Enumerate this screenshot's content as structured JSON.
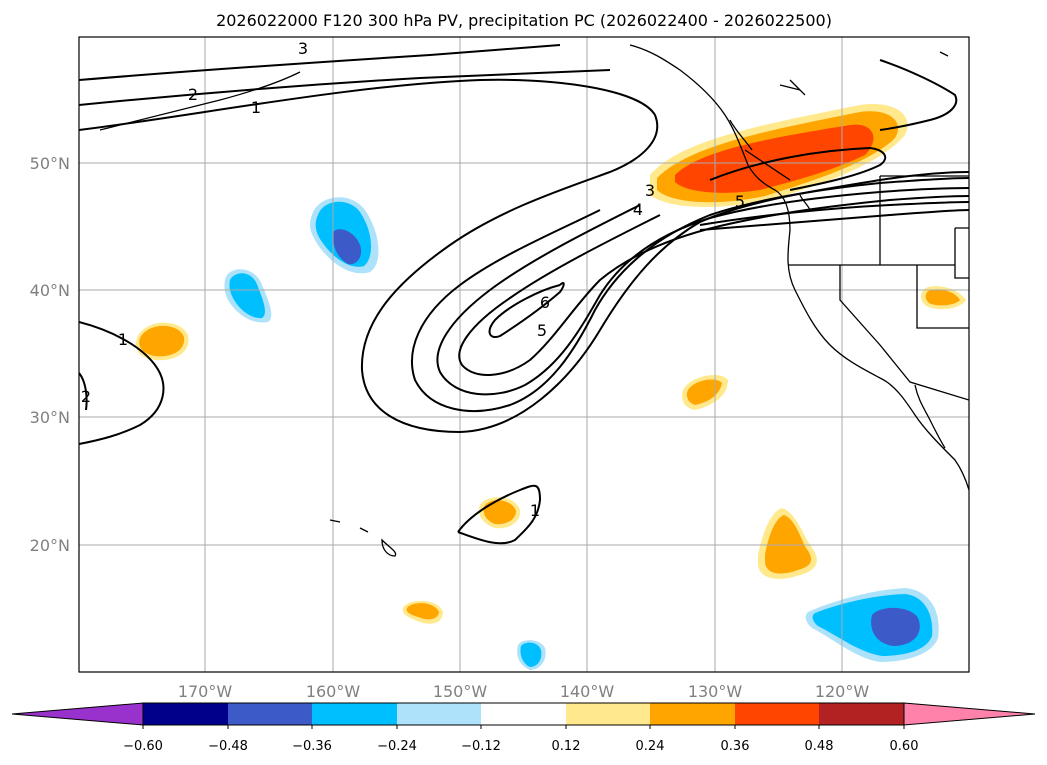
{
  "chart_data": {
    "type": "contour_map",
    "title": "2026022000 F120 300 hPa PV, precipitation PC (2026022400 - 2026022500)",
    "lon_range": [
      -180,
      -110
    ],
    "lat_range": [
      10,
      60
    ],
    "x_ticks": [
      "170°W",
      "160°W",
      "150°W",
      "140°W",
      "130°W",
      "120°W"
    ],
    "x_tick_values": [
      -170,
      -160,
      -150,
      -140,
      -130,
      -120
    ],
    "y_ticks": [
      "20°N",
      "30°N",
      "40°N",
      "50°N"
    ],
    "y_tick_values": [
      20,
      30,
      40,
      50
    ],
    "grid": true,
    "pv_contour_labels": [
      "1",
      "2",
      "3",
      "4",
      "5",
      "6",
      "1",
      "2",
      "1",
      "3",
      "5"
    ],
    "colorbar": {
      "ticks": [
        "−0.60",
        "−0.48",
        "−0.36",
        "−0.24",
        "−0.12",
        "0.12",
        "0.24",
        "0.36",
        "0.48",
        "0.60"
      ],
      "tick_values": [
        -0.6,
        -0.48,
        -0.36,
        -0.24,
        -0.12,
        0.12,
        0.24,
        0.36,
        0.48,
        0.6
      ],
      "colors": [
        "#9932CC",
        "#00008B",
        "#3C5AC8",
        "#00BFFF",
        "#ADE2FA",
        "#FFFFFF",
        "#FFE98C",
        "#FFA500",
        "#FF4500",
        "#B22222",
        "#FF82AB"
      ],
      "extend": "both"
    }
  }
}
